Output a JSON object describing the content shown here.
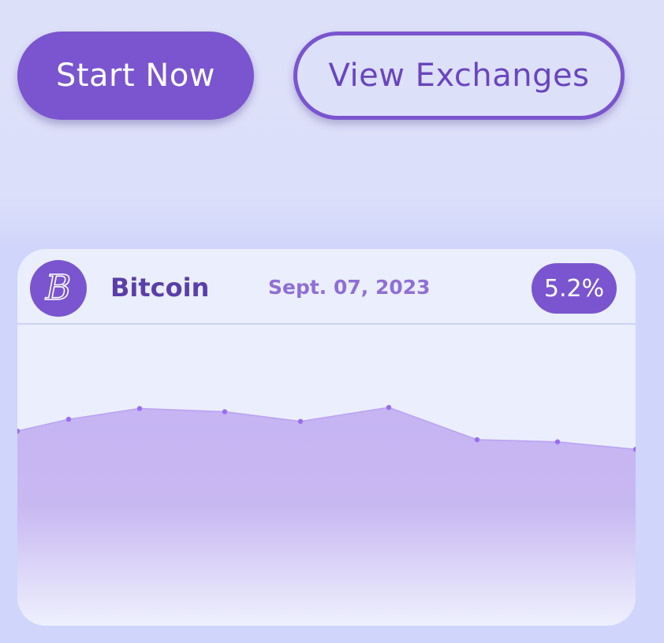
{
  "buttons": {
    "start_label": "Start Now",
    "exchanges_label": "View Exchanges"
  },
  "card": {
    "coin_name": "Bitcoin",
    "coin_initial": "B",
    "date": "Sept. 07, 2023",
    "change": "5.2%"
  },
  "colors": {
    "accent": "#7a55cf",
    "background": "#dde0f9",
    "card": "#ebeefd",
    "area_fill": "#c6b4f3",
    "points": "#9a6ef0"
  },
  "chart_data": {
    "type": "area",
    "x": [
      0,
      1,
      2,
      3,
      4,
      5,
      6,
      7,
      8
    ],
    "values": [
      41,
      52,
      62,
      59,
      50,
      63,
      33,
      31,
      24
    ],
    "ylim": [
      -140,
      140
    ],
    "grid": false,
    "legend": "none"
  }
}
